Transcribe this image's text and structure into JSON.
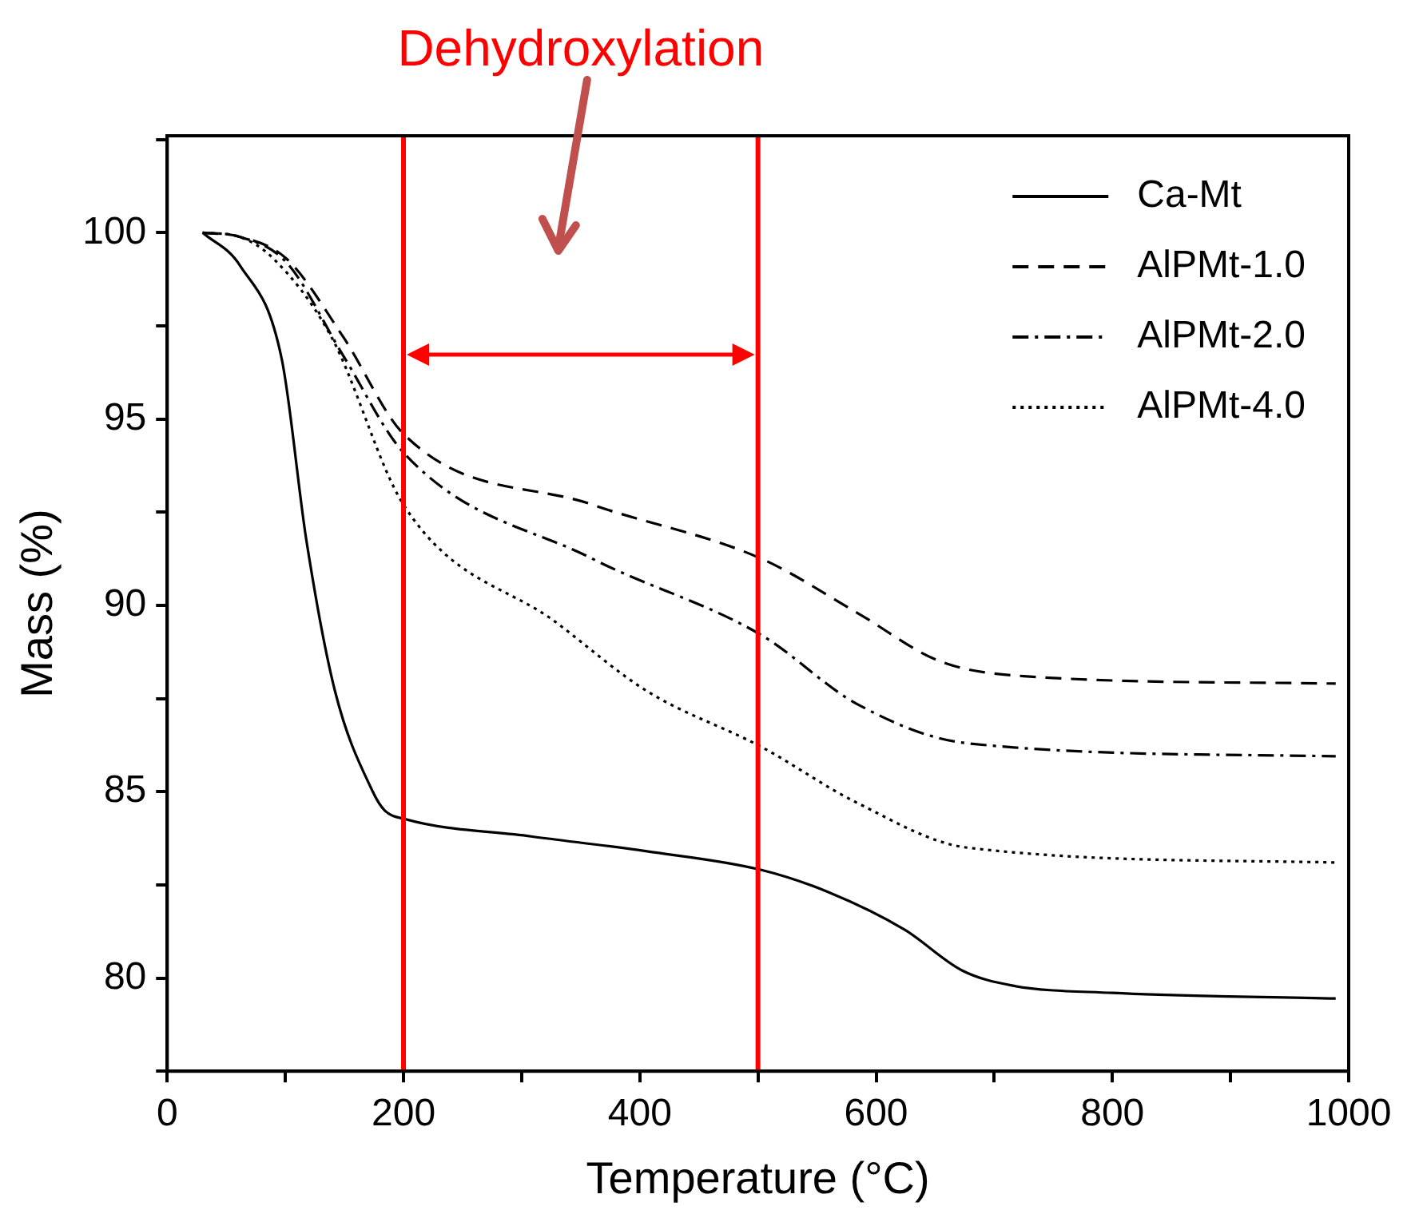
{
  "chart_data": {
    "type": "line",
    "xlabel": "Temperature (°C)",
    "ylabel": "Mass (%)",
    "xlim": [
      0,
      1000
    ],
    "ylim": [
      77.5,
      102.6
    ],
    "xticks": [
      0,
      {
        "value": 100,
        "label": null
      },
      200,
      {
        "value": 300,
        "label": null
      },
      400,
      {
        "value": 500,
        "label": null
      },
      600,
      {
        "value": 700,
        "label": null
      },
      800,
      {
        "value": 900,
        "label": null
      },
      1000
    ],
    "yticks": [
      {
        "value": 77.5,
        "label": null
      },
      80,
      {
        "value": 82.5,
        "label": null
      },
      85,
      {
        "value": 87.5,
        "label": null
      },
      90,
      {
        "value": 92.5,
        "label": null
      },
      95,
      {
        "value": 97.5,
        "label": null
      },
      100,
      {
        "value": 102.5,
        "label": null
      }
    ],
    "grid": false,
    "legend": "top right",
    "marker": "none",
    "series": [
      {
        "name": "Ca-Mt",
        "color": "#000000",
        "line_style": "solid",
        "x": [
          30,
          62,
          97,
          118,
          142,
          174,
          184,
          202,
          308,
          406,
          503,
          560,
          624,
          673,
          715,
          800,
          989
        ],
        "values": [
          100,
          99.1,
          96.6,
          91.7,
          87.7,
          85,
          84.5,
          84.26,
          83.8,
          83.4,
          82.9,
          82.3,
          81.3,
          80.2,
          79.8,
          79.6,
          79.45
        ]
      },
      {
        "name": "AlPMt-1.0",
        "color": "#000000",
        "line_style": "dashed",
        "x": [
          30,
          60,
          101,
          149,
          200,
          360,
          503,
          584,
          654,
          725,
          989
        ],
        "values": [
          100,
          99.9,
          99.3,
          97.2,
          94.6,
          92.7,
          91.25,
          89.8,
          88.5,
          88.1,
          87.9
        ]
      },
      {
        "name": "AlPMt-2.0",
        "color": "#000000",
        "line_style": "dashdot",
        "x": [
          30,
          60,
          101,
          149,
          200,
          360,
          503,
          584,
          677,
          989
        ],
        "values": [
          100,
          99.9,
          99.2,
          96.7,
          94.1,
          91.25,
          89.2,
          87.35,
          86.3,
          85.95
        ]
      },
      {
        "name": "AlPMt-4.0",
        "color": "#000000",
        "line_style": "dotted",
        "x": [
          30,
          60,
          90,
          139,
          200,
          331,
          406,
          503,
          584,
          677,
          989
        ],
        "values": [
          100,
          99.9,
          99.3,
          97.2,
          92.7,
          89.5,
          87.7,
          86.2,
          84.7,
          83.5,
          83.1
        ]
      }
    ],
    "ref_lines": [
      {
        "axis": "x",
        "value": 200,
        "color": "#ff0000"
      },
      {
        "axis": "x",
        "value": 500,
        "color": "#ff0000"
      }
    ],
    "annotations": [
      "Dehydroxylation"
    ]
  }
}
